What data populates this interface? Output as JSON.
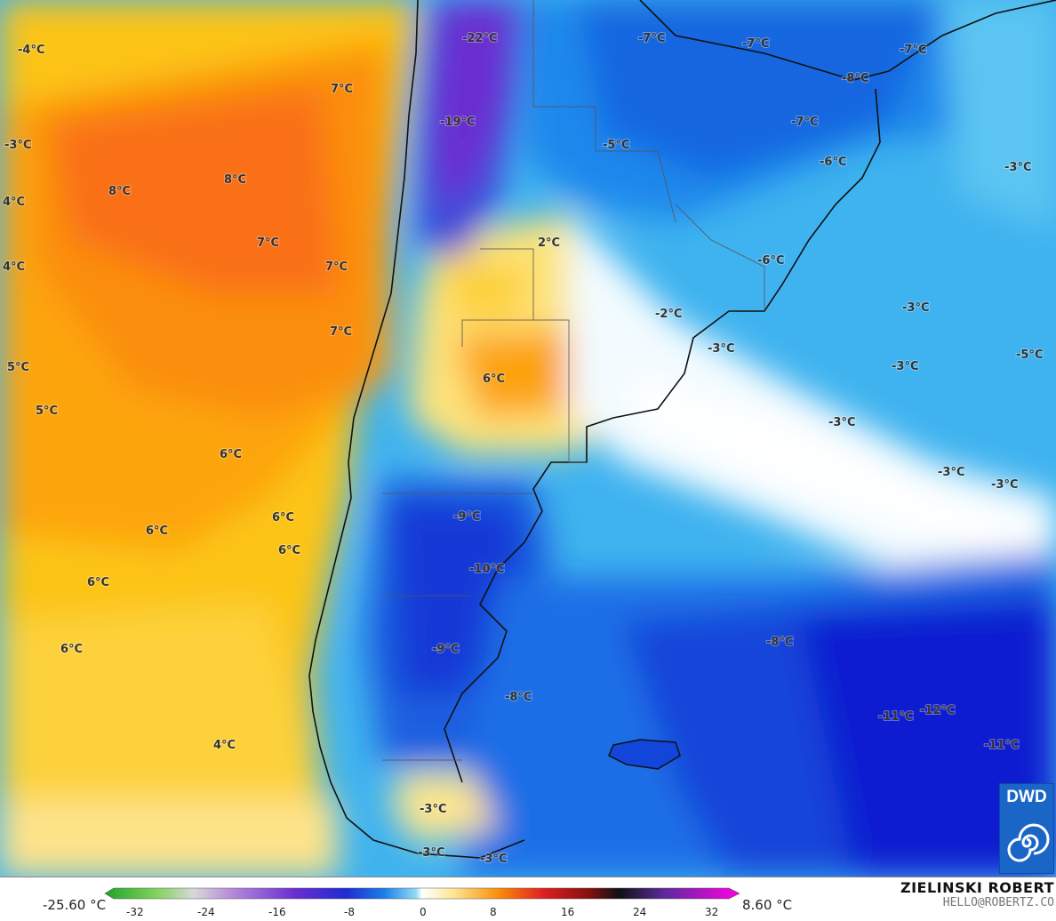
{
  "map": {
    "labels": [
      {
        "text": "-4°C"
      },
      {
        "text": "-22°C"
      },
      {
        "text": "-7°C"
      },
      {
        "text": "-7°C"
      },
      {
        "text": "-7°C"
      },
      {
        "text": "7°C"
      },
      {
        "text": "-8°C"
      },
      {
        "text": "-3°C"
      },
      {
        "text": "-19°C"
      },
      {
        "text": "-5°C"
      },
      {
        "text": "-7°C"
      },
      {
        "text": "8°C"
      },
      {
        "text": "8°C"
      },
      {
        "text": "-6°C"
      },
      {
        "text": "-3°C"
      },
      {
        "text": "4°C"
      },
      {
        "text": "2°C"
      },
      {
        "text": "7°C"
      },
      {
        "text": "7°C"
      },
      {
        "text": "4°C"
      },
      {
        "text": "-6°C"
      },
      {
        "text": "-2°C"
      },
      {
        "text": "-3°C"
      },
      {
        "text": "7°C"
      },
      {
        "text": "-3°C"
      },
      {
        "text": "-3°C"
      },
      {
        "text": "-5°C"
      },
      {
        "text": "5°C"
      },
      {
        "text": "6°C"
      },
      {
        "text": "5°C"
      },
      {
        "text": "-3°C"
      },
      {
        "text": "6°C"
      },
      {
        "text": "-3°C"
      },
      {
        "text": "-3°C"
      },
      {
        "text": "-9°C"
      },
      {
        "text": "6°C"
      },
      {
        "text": "6°C"
      },
      {
        "text": "6°C"
      },
      {
        "text": "-10°C"
      },
      {
        "text": "6°C"
      },
      {
        "text": "-8°C"
      },
      {
        "text": "-9°C"
      },
      {
        "text": "6°C"
      },
      {
        "text": "-8°C"
      },
      {
        "text": "-11°C"
      },
      {
        "text": "-12°C"
      },
      {
        "text": "4°C"
      },
      {
        "text": "-11°C"
      },
      {
        "text": "-3°C"
      },
      {
        "text": "-3°C"
      },
      {
        "text": "-3°C"
      }
    ]
  },
  "colorbar": {
    "min_label": "-25.60 °C",
    "max_label": "8.60 °C",
    "ticks": [
      "-32",
      "-24",
      "-16",
      "-8",
      "0",
      "8",
      "16",
      "24",
      "32"
    ]
  },
  "logo": {
    "text": "DWD"
  },
  "credit": {
    "name": "ZIELINSKI ROBERT",
    "email": "HELLO@ROBERTZ.CO"
  }
}
